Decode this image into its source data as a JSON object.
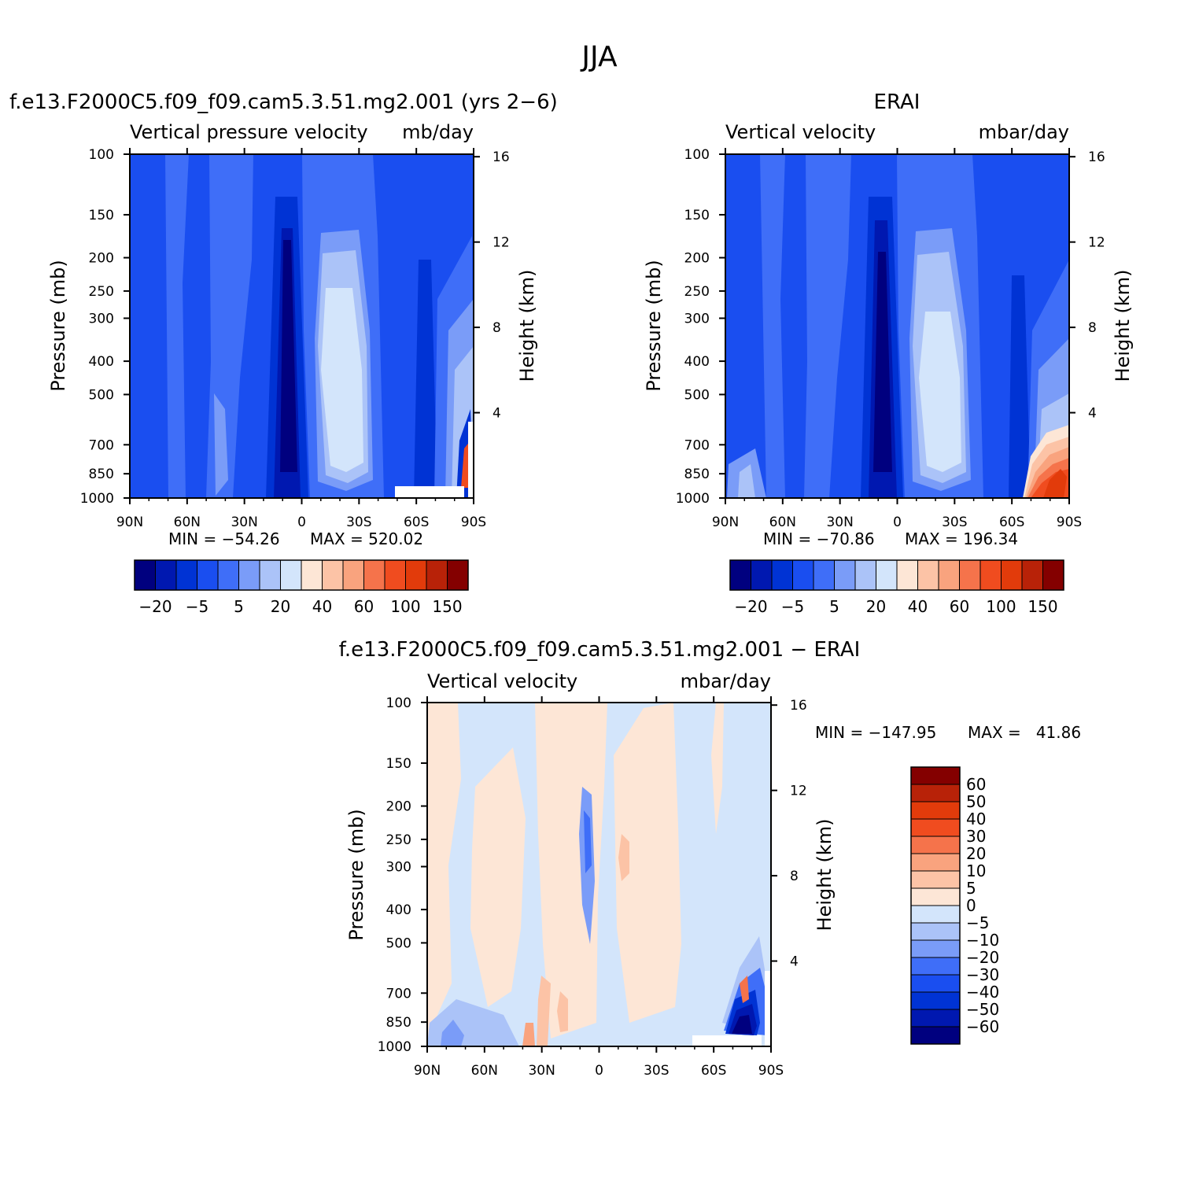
{
  "figure_title": "JJA",
  "chart_data": [
    {
      "type": "heatmap",
      "panel": "model",
      "title": "f.e13.F2000C5.f09_f09.cam5.3.51.mg2.001 (yrs 2−6)",
      "subtitle_left": "Vertical pressure velocity",
      "subtitle_right": "mb/day",
      "xlabel": "",
      "ylabel": "Pressure (mb)",
      "ylabel_right": "Height (km)",
      "x_ticks": [
        "90N",
        "60N",
        "30N",
        "0",
        "30S",
        "60S",
        "90S"
      ],
      "y_ticks": [
        "100",
        "150",
        "200",
        "250",
        "300",
        "400",
        "500",
        "700",
        "850",
        "1000"
      ],
      "y_ticks_right": [
        "16",
        "12",
        "8",
        "4"
      ],
      "xlim": [
        90,
        -90
      ],
      "ylim": [
        1000,
        100
      ],
      "min_label": "MIN = −54.26",
      "max_label": "MAX = 520.02",
      "min": -54.26,
      "max": 520.02,
      "colorbar_ticks": [
        "−20",
        "−5",
        "5",
        "20",
        "40",
        "60",
        "100",
        "150"
      ]
    },
    {
      "type": "heatmap",
      "panel": "obs",
      "title": "ERAI",
      "subtitle_left": "Vertical velocity",
      "subtitle_right": "mbar/day",
      "xlabel": "",
      "ylabel": "Pressure (mb)",
      "ylabel_right": "Height (km)",
      "x_ticks": [
        "90N",
        "60N",
        "30N",
        "0",
        "30S",
        "60S",
        "90S"
      ],
      "y_ticks": [
        "100",
        "150",
        "200",
        "250",
        "300",
        "400",
        "500",
        "700",
        "850",
        "1000"
      ],
      "y_ticks_right": [
        "16",
        "12",
        "8",
        "4"
      ],
      "xlim": [
        90,
        -90
      ],
      "ylim": [
        1000,
        100
      ],
      "min_label": "MIN = −70.86",
      "max_label": "MAX = 196.34",
      "min": -70.86,
      "max": 196.34,
      "colorbar_ticks": [
        "−20",
        "−5",
        "5",
        "20",
        "40",
        "60",
        "100",
        "150"
      ]
    },
    {
      "type": "heatmap",
      "panel": "diff",
      "title": "f.e13.F2000C5.f09_f09.cam5.3.51.mg2.001 − ERAI",
      "subtitle_left": "Vertical velocity",
      "subtitle_right": "mbar/day",
      "xlabel": "",
      "ylabel": "Pressure (mb)",
      "ylabel_right": "Height (km)",
      "x_ticks": [
        "90N",
        "60N",
        "30N",
        "0",
        "30S",
        "60S",
        "90S"
      ],
      "y_ticks": [
        "100",
        "150",
        "200",
        "250",
        "300",
        "400",
        "500",
        "700",
        "850",
        "1000"
      ],
      "y_ticks_right": [
        "16",
        "12",
        "8",
        "4"
      ],
      "xlim": [
        90,
        -90
      ],
      "ylim": [
        1000,
        100
      ],
      "min_label": "MIN = −147.95",
      "max_label": "MAX =   41.86",
      "min": -147.95,
      "max": 41.86,
      "colorbar_ticks": [
        "60",
        "50",
        "40",
        "30",
        "20",
        "10",
        "5",
        "0",
        "−5",
        "−10",
        "−20",
        "−30",
        "−40",
        "−50",
        "−60"
      ]
    }
  ],
  "colormaps": {
    "full": [
      "#00007f",
      "#0018b0",
      "#0033d4",
      "#1a4ef0",
      "#3f6ef8",
      "#7a9cf8",
      "#abc3f8",
      "#d3e5fb",
      "#fde6d6",
      "#fcc3a6",
      "#f9a37e",
      "#f5734b",
      "#f04c1f",
      "#e23b0b",
      "#b82208",
      "#840000"
    ],
    "diff_top_to_bottom": [
      "#840000",
      "#b82208",
      "#e23b0b",
      "#f04c1f",
      "#f5734b",
      "#f9a37e",
      "#fcc3a6",
      "#fde6d6",
      "#d3e5fb",
      "#abc3f8",
      "#7a9cf8",
      "#3f6ef8",
      "#1a4ef0",
      "#0033d4",
      "#0018b0",
      "#00007f"
    ]
  }
}
